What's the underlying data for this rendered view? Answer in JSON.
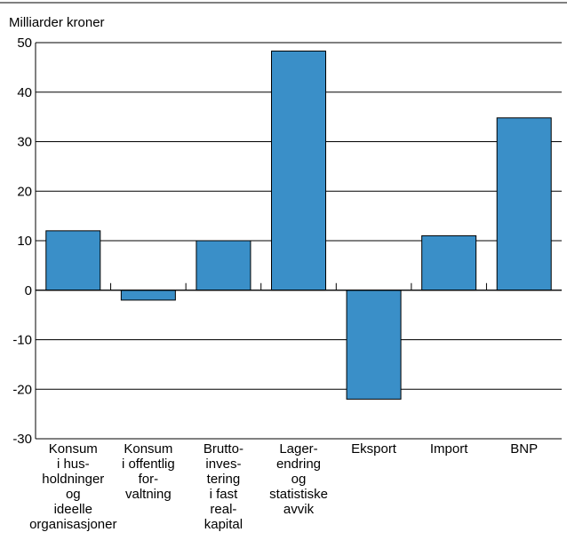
{
  "chart_data": {
    "type": "bar",
    "ylabel": "Milliarder kroner",
    "ylim": [
      -30,
      50
    ],
    "yticks": [
      50,
      40,
      30,
      20,
      10,
      0,
      -10,
      -20,
      -30
    ],
    "grid": true,
    "bar_color": "#3a8fc8",
    "categories": [
      [
        "Konsum",
        "i hus-",
        "holdninger",
        "og",
        "ideelle",
        "organisasjoner"
      ],
      [
        "Konsum",
        "i offentlig",
        "for-",
        "valtning"
      ],
      [
        "Brutto-",
        "inves-",
        "tering",
        "i fast",
        "real-",
        "kapital"
      ],
      [
        "Lager-",
        "endring",
        "og",
        "statistiske",
        "avvik"
      ],
      [
        "Eksport"
      ],
      [
        "Import"
      ],
      [
        "BNP"
      ]
    ],
    "values": [
      12,
      -2,
      10,
      48.3,
      -22,
      11,
      34.8
    ]
  }
}
